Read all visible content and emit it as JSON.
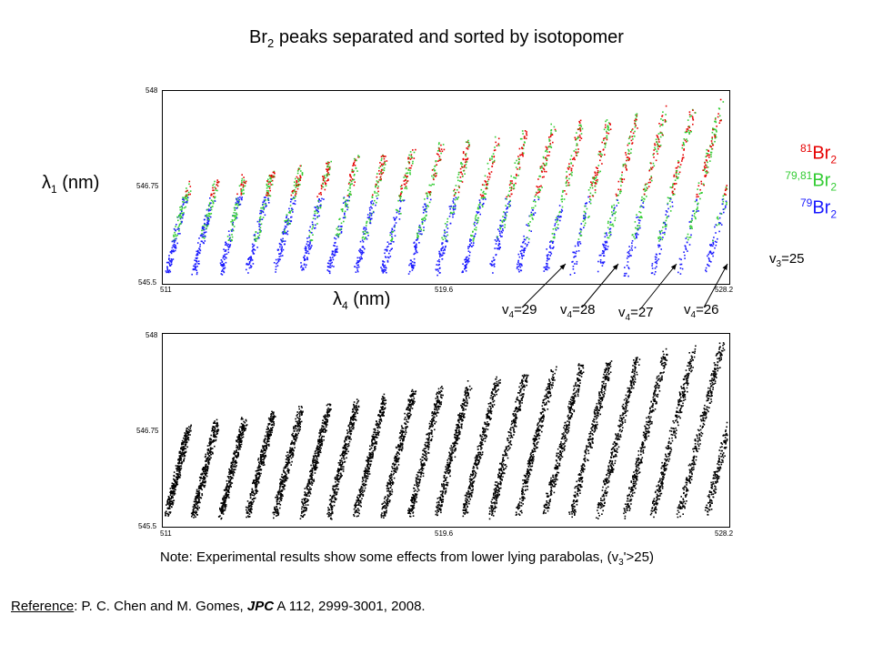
{
  "title": {
    "main": "Br",
    "sub": "2",
    "rest": " peaks separated and sorted by isotopomer"
  },
  "y_axis_label": {
    "symbol": "λ",
    "sub": "1",
    "unit": " (nm)"
  },
  "x_axis_label": {
    "symbol": "λ",
    "sub": "4",
    "unit": " (nm)"
  },
  "legend": [
    {
      "sup": "81",
      "text": "Br",
      "sub": "2",
      "color": "#e60000"
    },
    {
      "sup": "79,81",
      "text": "Br",
      "sub": "2",
      "color": "#33cc33"
    },
    {
      "sup": "79",
      "text": "Br",
      "sub": "2",
      "color": "#1a1aff"
    }
  ],
  "v3_label": {
    "v": "v",
    "sub": "3",
    "rest": "=25"
  },
  "v4_labels": [
    {
      "v": "v",
      "sub": "4",
      "rest": "=29"
    },
    {
      "v": "v",
      "sub": "4",
      "rest": "=28"
    },
    {
      "v": "v",
      "sub": "4",
      "rest": "=27"
    },
    {
      "v": "v",
      "sub": "4",
      "rest": "=26"
    }
  ],
  "top_plot": {
    "y_ticks": [
      "548",
      "546.75",
      "545.5"
    ],
    "x_ticks": [
      "511",
      "519.6",
      "528.2"
    ]
  },
  "bottom_plot": {
    "y_ticks": [
      "548",
      "546.75",
      "545.5"
    ],
    "x_ticks": [
      "511",
      "519.6",
      "528.2"
    ]
  },
  "note": {
    "pre": "Note: Experimental results show some effects from lower lying parabolas, (v",
    "sub": "3",
    "post": "'>25)"
  },
  "reference": {
    "label": "Reference",
    "pre": ": P. C. Chen and M. Gomes, ",
    "journal": "JPC",
    "post": " A 112, 2999-3001, 2008."
  },
  "chart_data": [
    {
      "type": "scatter",
      "title": "",
      "xlabel": "λ4 (nm)",
      "ylabel": "λ1 (nm)",
      "xlim": [
        511,
        528.2
      ],
      "ylim": [
        545.5,
        548
      ],
      "x_ticks": [
        511,
        519.6,
        528.2
      ],
      "y_ticks": [
        545.5,
        546.75,
        548
      ],
      "series": [
        {
          "name": "81Br2",
          "color": "#e60000"
        },
        {
          "name": "79,81Br2",
          "color": "#33cc33"
        },
        {
          "name": "79Br2",
          "color": "#1a1aff"
        }
      ]
    },
    {
      "type": "scatter",
      "title": "",
      "xlim": [
        511,
        528.2
      ],
      "ylim": [
        545.5,
        548
      ],
      "x_ticks": [
        511,
        519.6,
        528.2
      ],
      "y_ticks": [
        545.5,
        546.75,
        548
      ],
      "series": [
        {
          "color": "#000000"
        }
      ]
    }
  ]
}
